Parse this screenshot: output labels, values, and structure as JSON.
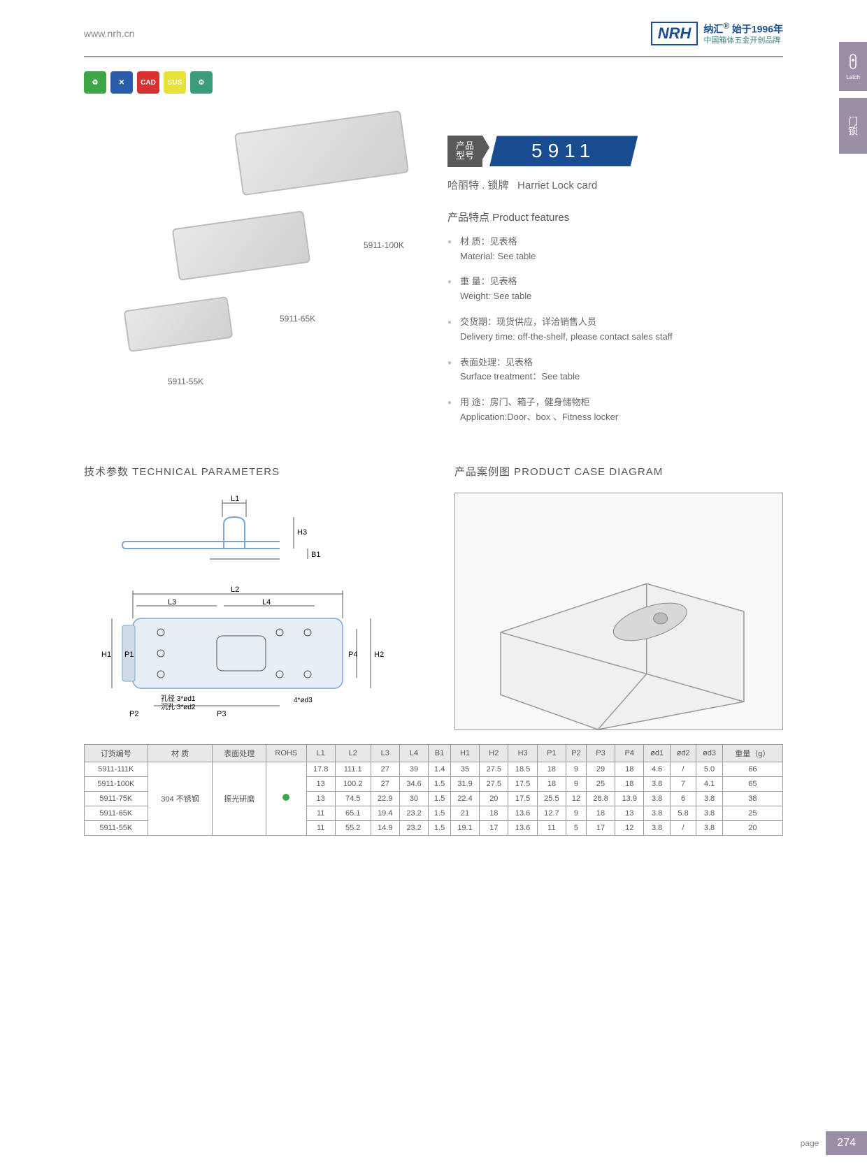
{
  "header": {
    "url": "www.nrh.cn",
    "logo": "NRH",
    "brand_cn": "纳汇",
    "since": "始于1996年",
    "tagline": "中国箱体五金开创品牌"
  },
  "side": {
    "tab1": "Latch",
    "tab2": "门锁"
  },
  "badges": [
    {
      "color": "#3fa648",
      "txt": "♻"
    },
    {
      "color": "#2b5ca8",
      "txt": "✕"
    },
    {
      "color": "#d93030",
      "txt": "CAD"
    },
    {
      "color": "#e6e23a",
      "txt": "SUS"
    },
    {
      "color": "#3b9b7a",
      "txt": "⚙"
    }
  ],
  "product_labels": {
    "p1": "5911-100K",
    "p2": "5911-65K",
    "p3": "5911-55K"
  },
  "model": {
    "tag_cn": "产品\n型号",
    "number": "5911",
    "subtitle_cn": "哈丽特 . 锁牌",
    "subtitle_en": "Harriet Lock card"
  },
  "features_title": "产品特点  Product features",
  "features": [
    {
      "cn": "材  质：见表格",
      "en": "Material: See table"
    },
    {
      "cn": "重  量：见表格",
      "en": "Weight: See table"
    },
    {
      "cn": "交货期：现货供应，详洽销售人员",
      "en": "Delivery time: off-the-shelf, please contact sales staff"
    },
    {
      "cn": "表面处理：见表格",
      "en": "Surface treatment：See table"
    },
    {
      "cn": "用 途：房门、箱子，健身储物柜",
      "en": "Application:Door、box 、Fitness locker"
    }
  ],
  "tech_title": "技术参数  TECHNICAL PARAMETERS",
  "case_title": "产品案例图  PRODUCT CASE DIAGRAM",
  "dims": {
    "L1": "L1",
    "L2": "L2",
    "L3": "L3",
    "L4": "L4",
    "B1": "B1",
    "H1": "H1",
    "H2": "H2",
    "H3": "H3",
    "P1": "P1",
    "P2": "P2",
    "P3": "P3",
    "P4": "P4",
    "note1": "孔径 3*ød1",
    "note2": "沉孔 3*ød2",
    "note3": "4*ød3"
  },
  "table": {
    "columns": [
      "订货编号",
      "材  质",
      "表面处理",
      "ROHS",
      "L1",
      "L2",
      "L3",
      "L4",
      "B1",
      "H1",
      "H2",
      "H3",
      "P1",
      "P2",
      "P3",
      "P4",
      "ød1",
      "ød2",
      "ød3",
      "重量（g）"
    ],
    "material": "304 不锈钢",
    "surface": "振光研磨",
    "rohs_color": "#3fa648",
    "rows": [
      [
        "5911-111K",
        "17.8",
        "111.1",
        "27",
        "39",
        "1.4",
        "35",
        "27.5",
        "18.5",
        "18",
        "9",
        "29",
        "18",
        "4.6",
        "/",
        "5.0",
        "66"
      ],
      [
        "5911-100K",
        "13",
        "100.2",
        "27",
        "34.6",
        "1.5",
        "31.9",
        "27.5",
        "17.5",
        "18",
        "9",
        "25",
        "18",
        "3.8",
        "7",
        "4.1",
        "65"
      ],
      [
        "5911-75K",
        "13",
        "74.5",
        "22.9",
        "30",
        "1.5",
        "22.4",
        "20",
        "17.5",
        "25.5",
        "12",
        "28.8",
        "13.9",
        "3.8",
        "6",
        "3.8",
        "38"
      ],
      [
        "5911-65K",
        "11",
        "65.1",
        "19.4",
        "23.2",
        "1.5",
        "21",
        "18",
        "13.6",
        "12.7",
        "9",
        "18",
        "13",
        "3.8",
        "5.8",
        "3.8",
        "25"
      ],
      [
        "5911-55K",
        "11",
        "55.2",
        "14.9",
        "23.2",
        "1.5",
        "19.1",
        "17",
        "13.6",
        "11",
        "5",
        "17",
        "12",
        "3.8",
        "/",
        "3.8",
        "20"
      ]
    ]
  },
  "page": {
    "label": "page",
    "number": "274"
  }
}
